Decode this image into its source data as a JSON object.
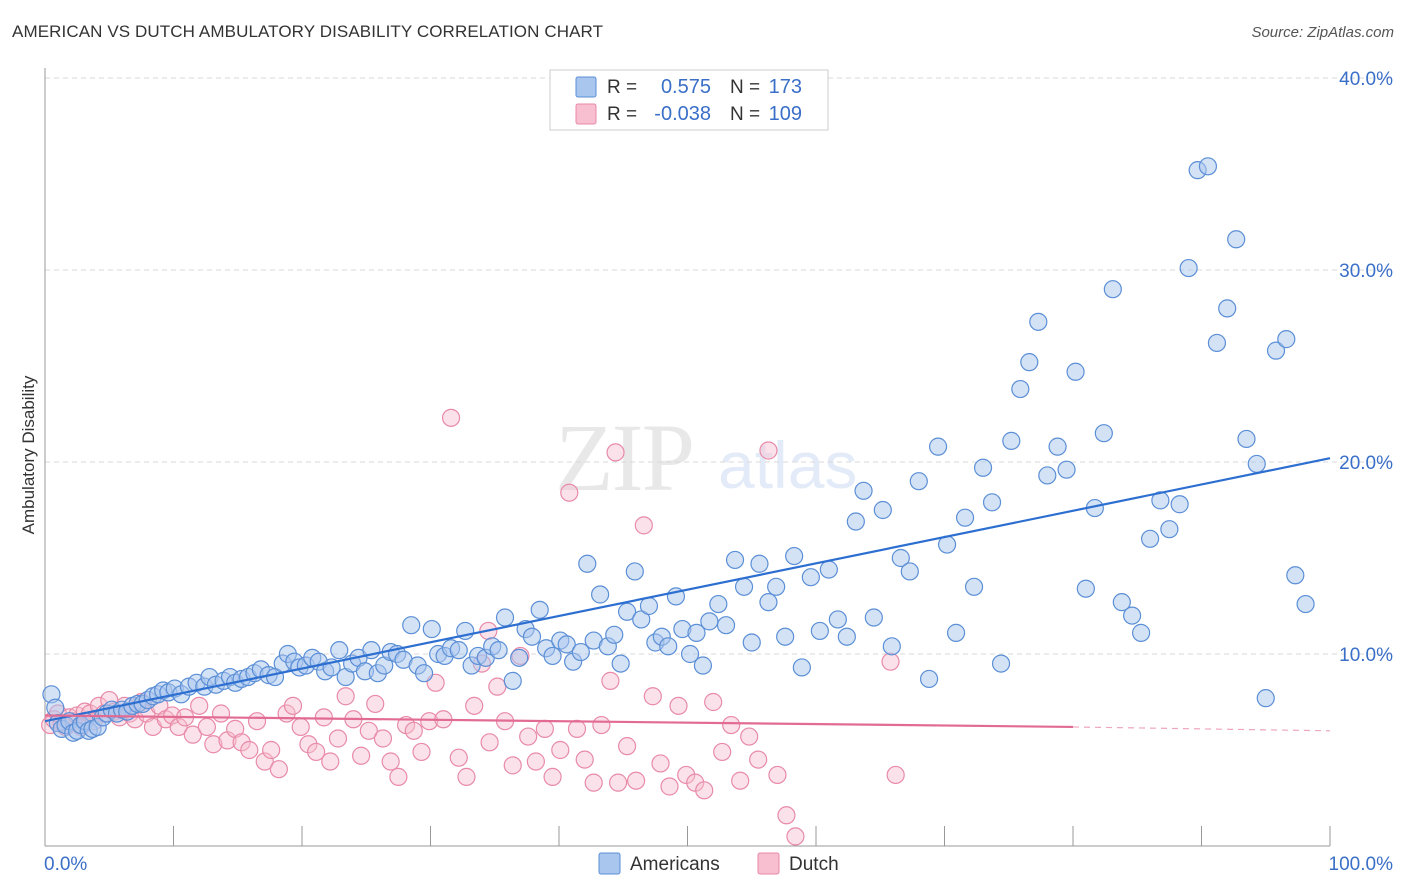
{
  "title": "AMERICAN VS DUTCH AMBULATORY DISABILITY CORRELATION CHART",
  "source": "Source: ZipAtlas.com",
  "watermark": "ZIPatlas",
  "stats": {
    "rows": [
      {
        "r_label": "R =",
        "r_value": "0.575",
        "n_label": "N =",
        "n_value": "173"
      },
      {
        "r_label": "R =",
        "r_value": "-0.038",
        "n_label": "N =",
        "n_value": "109"
      }
    ]
  },
  "colors": {
    "americans_fill": "#a9c6ee",
    "americans_stroke": "#5b8fd6",
    "americans_line": "#2d6fd0",
    "dutch_fill": "#f7bfd0",
    "dutch_stroke": "#e88aa8",
    "dutch_line": "#e26b93",
    "grid": "#d9d9d9",
    "tick_text": "#3a6fc8"
  },
  "chart_data": {
    "type": "scatter",
    "title": "AMERICAN VS DUTCH AMBULATORY DISABILITY CORRELATION CHART",
    "xlabel": "",
    "ylabel": "Ambulatory Disability",
    "xlim": [
      0,
      100
    ],
    "ylim": [
      0,
      40
    ],
    "x_tick_labels": [
      "0.0%",
      "100.0%"
    ],
    "y_ticks": [
      10,
      20,
      30,
      40
    ],
    "y_tick_labels": [
      "10.0%",
      "20.0%",
      "30.0%",
      "40.0%"
    ],
    "grid": true,
    "legend_position": "bottom-center",
    "series": [
      {
        "name": "Americans",
        "r": 0.575,
        "n": 173,
        "trend": {
          "x": [
            0,
            100
          ],
          "y": [
            6.5,
            20.2
          ]
        },
        "points": [
          [
            0.5,
            7.9
          ],
          [
            0.8,
            7.2
          ],
          [
            1.0,
            6.4
          ],
          [
            1.3,
            6.1
          ],
          [
            1.6,
            6.3
          ],
          [
            1.9,
            6.5
          ],
          [
            2.2,
            5.9
          ],
          [
            2.5,
            6.0
          ],
          [
            2.8,
            6.3
          ],
          [
            3.1,
            6.5
          ],
          [
            3.4,
            6.0
          ],
          [
            3.7,
            6.1
          ],
          [
            4.1,
            6.2
          ],
          [
            4.5,
            6.7
          ],
          [
            4.8,
            6.9
          ],
          [
            5.2,
            7.1
          ],
          [
            5.6,
            6.9
          ],
          [
            6.0,
            7.1
          ],
          [
            6.4,
            7.0
          ],
          [
            6.8,
            7.3
          ],
          [
            7.2,
            7.4
          ],
          [
            7.6,
            7.4
          ],
          [
            8.0,
            7.6
          ],
          [
            8.4,
            7.8
          ],
          [
            8.8,
            7.9
          ],
          [
            9.2,
            8.1
          ],
          [
            9.6,
            8.0
          ],
          [
            10.1,
            8.2
          ],
          [
            10.6,
            7.9
          ],
          [
            11.2,
            8.3
          ],
          [
            11.8,
            8.5
          ],
          [
            12.4,
            8.3
          ],
          [
            12.8,
            8.8
          ],
          [
            13.3,
            8.4
          ],
          [
            13.9,
            8.6
          ],
          [
            14.4,
            8.8
          ],
          [
            14.8,
            8.5
          ],
          [
            15.3,
            8.7
          ],
          [
            15.8,
            8.8
          ],
          [
            16.3,
            9.0
          ],
          [
            16.8,
            9.2
          ],
          [
            17.4,
            8.9
          ],
          [
            17.9,
            8.8
          ],
          [
            18.5,
            9.5
          ],
          [
            18.9,
            10.0
          ],
          [
            19.4,
            9.6
          ],
          [
            19.8,
            9.3
          ],
          [
            20.3,
            9.4
          ],
          [
            20.8,
            9.8
          ],
          [
            21.3,
            9.6
          ],
          [
            21.8,
            9.1
          ],
          [
            22.3,
            9.3
          ],
          [
            22.9,
            10.2
          ],
          [
            23.4,
            8.8
          ],
          [
            23.9,
            9.5
          ],
          [
            24.4,
            9.8
          ],
          [
            24.9,
            9.1
          ],
          [
            25.4,
            10.2
          ],
          [
            25.9,
            9.0
          ],
          [
            26.4,
            9.4
          ],
          [
            26.9,
            10.1
          ],
          [
            27.4,
            10.0
          ],
          [
            27.9,
            9.7
          ],
          [
            28.5,
            11.5
          ],
          [
            29.0,
            9.4
          ],
          [
            29.5,
            9.0
          ],
          [
            30.1,
            11.3
          ],
          [
            30.6,
            10.0
          ],
          [
            31.1,
            9.9
          ],
          [
            31.6,
            10.3
          ],
          [
            32.2,
            10.2
          ],
          [
            32.7,
            11.2
          ],
          [
            33.2,
            9.4
          ],
          [
            33.7,
            9.9
          ],
          [
            34.3,
            9.8
          ],
          [
            34.8,
            10.4
          ],
          [
            35.3,
            10.2
          ],
          [
            35.8,
            11.9
          ],
          [
            36.4,
            8.6
          ],
          [
            36.9,
            9.8
          ],
          [
            37.4,
            11.3
          ],
          [
            37.9,
            10.9
          ],
          [
            38.5,
            12.3
          ],
          [
            39.0,
            10.3
          ],
          [
            39.5,
            9.9
          ],
          [
            40.1,
            10.7
          ],
          [
            40.6,
            10.5
          ],
          [
            41.1,
            9.6
          ],
          [
            41.7,
            10.1
          ],
          [
            42.2,
            14.7
          ],
          [
            42.7,
            10.7
          ],
          [
            43.2,
            13.1
          ],
          [
            43.8,
            10.4
          ],
          [
            44.3,
            11.0
          ],
          [
            44.8,
            9.5
          ],
          [
            45.3,
            12.2
          ],
          [
            45.9,
            14.3
          ],
          [
            46.4,
            11.8
          ],
          [
            47.0,
            12.5
          ],
          [
            47.5,
            10.6
          ],
          [
            48.0,
            10.9
          ],
          [
            48.5,
            10.4
          ],
          [
            49.1,
            13.0
          ],
          [
            49.6,
            11.3
          ],
          [
            50.2,
            10.0
          ],
          [
            50.7,
            11.1
          ],
          [
            51.2,
            9.4
          ],
          [
            51.7,
            11.7
          ],
          [
            52.4,
            12.6
          ],
          [
            53.0,
            11.5
          ],
          [
            53.7,
            14.9
          ],
          [
            54.4,
            13.5
          ],
          [
            55.0,
            10.6
          ],
          [
            55.6,
            14.7
          ],
          [
            56.3,
            12.7
          ],
          [
            56.9,
            13.5
          ],
          [
            57.6,
            10.9
          ],
          [
            58.3,
            15.1
          ],
          [
            58.9,
            9.3
          ],
          [
            59.6,
            14.0
          ],
          [
            60.3,
            11.2
          ],
          [
            61.0,
            14.4
          ],
          [
            61.7,
            11.8
          ],
          [
            62.4,
            10.9
          ],
          [
            63.1,
            16.9
          ],
          [
            63.7,
            18.5
          ],
          [
            64.5,
            11.9
          ],
          [
            65.2,
            17.5
          ],
          [
            65.9,
            10.4
          ],
          [
            66.6,
            15.0
          ],
          [
            67.3,
            14.3
          ],
          [
            68.0,
            19.0
          ],
          [
            68.8,
            8.7
          ],
          [
            69.5,
            20.8
          ],
          [
            70.2,
            15.7
          ],
          [
            70.9,
            11.1
          ],
          [
            71.6,
            17.1
          ],
          [
            72.3,
            13.5
          ],
          [
            73.0,
            19.7
          ],
          [
            73.7,
            17.9
          ],
          [
            74.4,
            9.5
          ],
          [
            75.2,
            21.1
          ],
          [
            75.9,
            23.8
          ],
          [
            76.6,
            25.2
          ],
          [
            77.3,
            27.3
          ],
          [
            78.0,
            19.3
          ],
          [
            78.8,
            20.8
          ],
          [
            79.5,
            19.6
          ],
          [
            80.2,
            24.7
          ],
          [
            81.0,
            13.4
          ],
          [
            81.7,
            17.6
          ],
          [
            82.4,
            21.5
          ],
          [
            83.1,
            29.0
          ],
          [
            83.8,
            12.7
          ],
          [
            84.6,
            12.0
          ],
          [
            85.3,
            11.1
          ],
          [
            86.0,
            16.0
          ],
          [
            86.8,
            18.0
          ],
          [
            87.5,
            16.5
          ],
          [
            88.3,
            17.8
          ],
          [
            89.0,
            30.1
          ],
          [
            89.7,
            35.2
          ],
          [
            90.5,
            35.4
          ],
          [
            91.2,
            26.2
          ],
          [
            92.0,
            28.0
          ],
          [
            92.7,
            31.6
          ],
          [
            93.5,
            21.2
          ],
          [
            94.3,
            19.9
          ],
          [
            95.0,
            7.7
          ],
          [
            95.8,
            25.8
          ],
          [
            96.6,
            26.4
          ],
          [
            97.3,
            14.1
          ],
          [
            98.1,
            12.6
          ]
        ]
      },
      {
        "name": "Dutch",
        "r": -0.038,
        "n": 109,
        "trend": {
          "x": [
            0,
            80
          ],
          "y": [
            6.8,
            6.2
          ]
        },
        "trend_dashed": {
          "x": [
            80,
            100
          ],
          "y": [
            6.2,
            6.0
          ]
        },
        "points": [
          [
            0.4,
            6.3
          ],
          [
            0.7,
            6.6
          ],
          [
            1.0,
            6.9
          ],
          [
            1.3,
            6.4
          ],
          [
            1.6,
            6.2
          ],
          [
            1.9,
            6.7
          ],
          [
            2.2,
            6.5
          ],
          [
            2.5,
            6.8
          ],
          [
            2.8,
            6.2
          ],
          [
            3.1,
            7.0
          ],
          [
            3.5,
            6.9
          ],
          [
            3.8,
            6.5
          ],
          [
            4.2,
            7.3
          ],
          [
            4.6,
            6.9
          ],
          [
            5.0,
            7.6
          ],
          [
            5.4,
            7.0
          ],
          [
            5.8,
            6.7
          ],
          [
            6.2,
            7.3
          ],
          [
            6.6,
            6.9
          ],
          [
            7.0,
            6.6
          ],
          [
            7.5,
            7.5
          ],
          [
            7.9,
            6.9
          ],
          [
            8.4,
            6.2
          ],
          [
            8.9,
            7.3
          ],
          [
            9.4,
            6.6
          ],
          [
            9.9,
            6.8
          ],
          [
            10.4,
            6.2
          ],
          [
            10.9,
            6.7
          ],
          [
            11.5,
            5.8
          ],
          [
            12.0,
            7.3
          ],
          [
            12.6,
            6.2
          ],
          [
            13.1,
            5.3
          ],
          [
            13.7,
            6.9
          ],
          [
            14.2,
            5.5
          ],
          [
            14.8,
            6.1
          ],
          [
            15.3,
            5.4
          ],
          [
            15.9,
            5.0
          ],
          [
            16.5,
            6.5
          ],
          [
            17.1,
            4.4
          ],
          [
            17.6,
            5.0
          ],
          [
            18.2,
            4.0
          ],
          [
            18.8,
            6.9
          ],
          [
            19.3,
            7.3
          ],
          [
            19.9,
            6.2
          ],
          [
            20.5,
            5.3
          ],
          [
            21.1,
            4.9
          ],
          [
            21.7,
            6.7
          ],
          [
            22.2,
            4.4
          ],
          [
            22.8,
            5.6
          ],
          [
            23.4,
            7.8
          ],
          [
            24.0,
            6.6
          ],
          [
            24.6,
            4.7
          ],
          [
            25.2,
            6.0
          ],
          [
            25.7,
            7.4
          ],
          [
            26.3,
            5.6
          ],
          [
            26.9,
            4.4
          ],
          [
            27.5,
            3.6
          ],
          [
            28.1,
            6.3
          ],
          [
            28.7,
            6.0
          ],
          [
            29.3,
            4.9
          ],
          [
            29.9,
            6.5
          ],
          [
            30.4,
            8.5
          ],
          [
            31.0,
            6.6
          ],
          [
            31.6,
            22.3
          ],
          [
            32.2,
            4.6
          ],
          [
            32.8,
            3.6
          ],
          [
            33.4,
            7.3
          ],
          [
            34.0,
            9.5
          ],
          [
            34.6,
            5.4
          ],
          [
            35.2,
            8.3
          ],
          [
            35.8,
            6.5
          ],
          [
            36.4,
            4.2
          ],
          [
            37.0,
            9.9
          ],
          [
            37.6,
            5.7
          ],
          [
            38.2,
            4.4
          ],
          [
            38.9,
            6.1
          ],
          [
            39.5,
            3.6
          ],
          [
            40.1,
            5.0
          ],
          [
            40.8,
            18.4
          ],
          [
            41.4,
            6.1
          ],
          [
            42.0,
            4.5
          ],
          [
            42.7,
            3.3
          ],
          [
            43.3,
            6.3
          ],
          [
            44.0,
            8.6
          ],
          [
            44.6,
            3.3
          ],
          [
            45.3,
            5.2
          ],
          [
            46.0,
            3.4
          ],
          [
            46.6,
            16.7
          ],
          [
            47.3,
            7.8
          ],
          [
            47.9,
            4.3
          ],
          [
            48.6,
            3.1
          ],
          [
            49.3,
            7.3
          ],
          [
            49.9,
            3.7
          ],
          [
            50.6,
            3.3
          ],
          [
            51.3,
            2.9
          ],
          [
            52.0,
            7.5
          ],
          [
            52.7,
            4.9
          ],
          [
            53.4,
            6.3
          ],
          [
            54.1,
            3.4
          ],
          [
            54.8,
            5.7
          ],
          [
            55.5,
            4.5
          ],
          [
            56.3,
            20.6
          ],
          [
            57.0,
            3.7
          ],
          [
            57.7,
            1.6
          ],
          [
            58.4,
            0.5
          ],
          [
            65.8,
            9.6
          ],
          [
            66.2,
            3.7
          ],
          [
            44.4,
            20.5
          ],
          [
            34.5,
            11.2
          ]
        ]
      }
    ]
  },
  "legend": {
    "items": [
      {
        "label": "Americans"
      },
      {
        "label": "Dutch"
      }
    ]
  }
}
